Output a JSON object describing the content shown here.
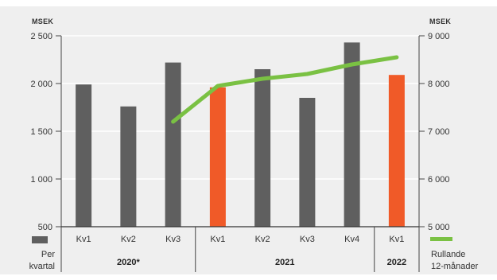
{
  "chart_data": {
    "type": "bar",
    "left_unit": "MSEK",
    "right_unit": "MSEK",
    "left_ylim": [
      500,
      2500
    ],
    "right_ylim": [
      5000,
      9000
    ],
    "left_ticks": [
      "2 500",
      "2 000",
      "1 500",
      "1 000",
      "500"
    ],
    "right_ticks": [
      "9 000",
      "8 000",
      "7 000",
      "6 000",
      "5 000"
    ],
    "categories": [
      "Kv1",
      "Kv2",
      "Kv3",
      "Kv1",
      "Kv2",
      "Kv3",
      "Kv4",
      "Kv1"
    ],
    "bar_values": [
      1990,
      1760,
      2220,
      1960,
      2150,
      1850,
      2430,
      2090
    ],
    "bar_colors": [
      "#5f5f5f",
      "#5f5f5f",
      "#5f5f5f",
      "#f05a28",
      "#5f5f5f",
      "#5f5f5f",
      "#5f5f5f",
      "#f05a28"
    ],
    "line_values": [
      null,
      null,
      7200,
      7950,
      8100,
      8200,
      8400,
      8550
    ],
    "line_color": "#7ac143",
    "grid": true,
    "years": [
      {
        "label": "2020*",
        "start": 0,
        "end": 2
      },
      {
        "label": "2021",
        "start": 3,
        "end": 6
      },
      {
        "label": "2022",
        "start": 7,
        "end": 7
      }
    ],
    "legend": {
      "bars": [
        "Per",
        "kvartal"
      ],
      "line": [
        "Rullande",
        "12-månader"
      ]
    }
  }
}
